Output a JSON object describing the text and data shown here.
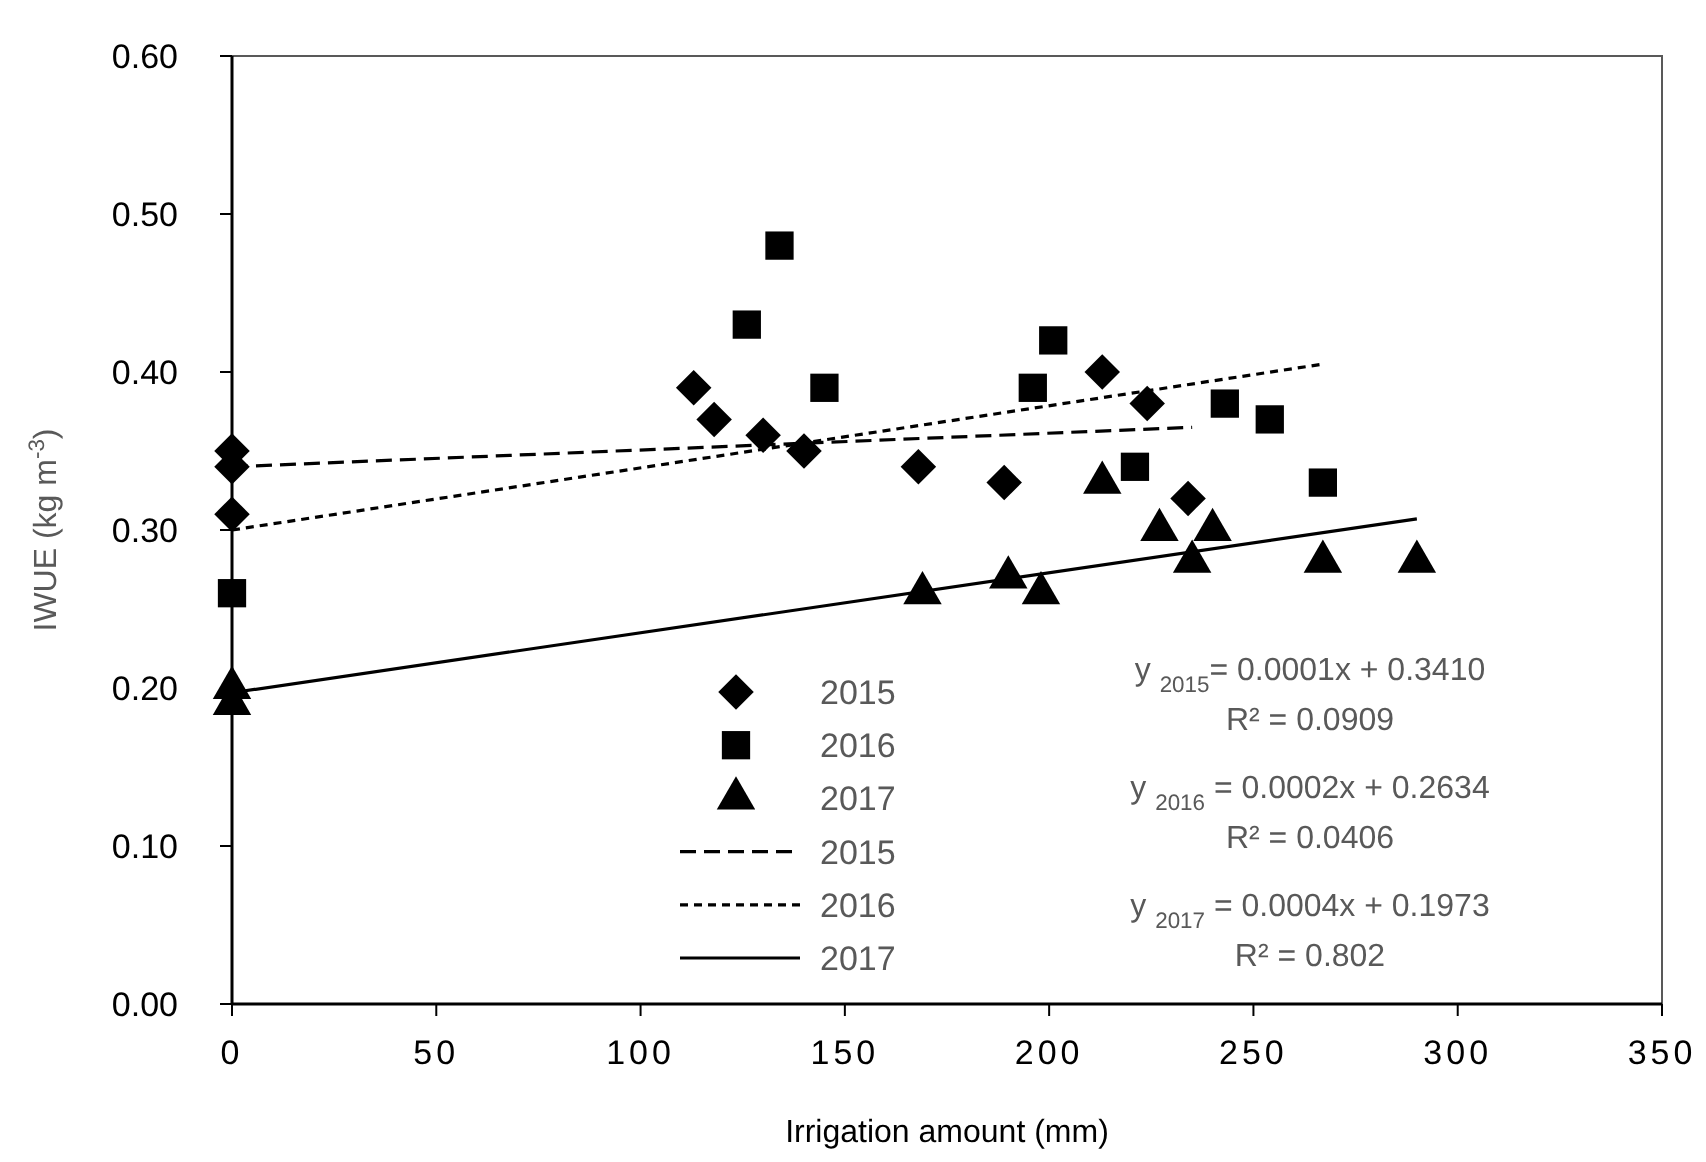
{
  "chart_data": {
    "type": "scatter",
    "xlabel": "Irrigation amount (mm)",
    "ylabel": "IWUE (kg m$^{-3}$)",
    "xlim": [
      0,
      350
    ],
    "xticks": [
      0,
      50,
      100,
      150,
      200,
      250,
      300,
      350
    ],
    "ylim": [
      0,
      0.6
    ],
    "yticks": [
      {
        "value": 0,
        "label": "0.00"
      },
      {
        "value": 0.1,
        "label": "0.10"
      },
      {
        "value": 0.2,
        "label": "0.20"
      },
      {
        "value": 0.3,
        "label": "0.30"
      },
      {
        "value": 0.4,
        "label": "0.40"
      },
      {
        "value": 0.5,
        "label": "0.50"
      },
      {
        "value": 0.6,
        "label": "0.60"
      }
    ],
    "legend": "bottom",
    "series": [
      {
        "name": "2015",
        "marker": "diamond",
        "color": "#000000",
        "x": [
          0,
          0,
          0,
          113,
          118,
          130,
          140,
          168,
          189,
          213,
          224,
          234
        ],
        "values": [
          0.35,
          0.34,
          0.31,
          0.39,
          0.37,
          0.36,
          0.35,
          0.34,
          0.33,
          0.4,
          0.38,
          0.32
        ]
      },
      {
        "name": "2016",
        "marker": "square",
        "color": "#000000",
        "x": [
          0,
          126,
          134,
          145,
          196,
          201,
          221,
          243,
          254,
          267
        ],
        "values": [
          0.26,
          0.43,
          0.48,
          0.39,
          0.39,
          0.42,
          0.34,
          0.38,
          0.37,
          0.33
        ]
      },
      {
        "name": "2017",
        "marker": "triangle",
        "color": "#000000",
        "x": [
          0,
          0,
          169,
          190,
          198,
          213,
          227,
          235,
          240,
          267,
          290
        ],
        "values": [
          0.2,
          0.19,
          0.26,
          0.27,
          0.26,
          0.33,
          0.3,
          0.28,
          0.3,
          0.28,
          0.28
        ]
      },
      {
        "name": "2015",
        "type": "line",
        "line_style": "dashed",
        "color": "#000000",
        "x": [
          0,
          235
        ],
        "values": [
          0.34,
          0.365
        ]
      },
      {
        "name": "2016",
        "type": "line",
        "line_style": "dotted",
        "color": "#000000",
        "x": [
          0,
          267
        ],
        "values": [
          0.3,
          0.405
        ]
      },
      {
        "name": "2017",
        "type": "line",
        "line_style": "solid",
        "color": "#000000",
        "x": [
          0,
          290
        ],
        "values": [
          0.197,
          0.307
        ]
      }
    ],
    "annotations": [
      "y $_{2015}$= 0.0001x + 0.3410",
      "R² = 0.0909",
      "y $_{2016}$ = 0.0002x + 0.2634",
      "R² = 0.0406",
      "y $_{2017}$ = 0.0004x + 0.1973",
      "R² = 0.802"
    ]
  }
}
